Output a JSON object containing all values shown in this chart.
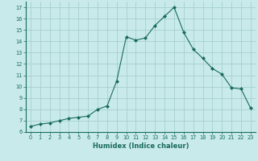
{
  "x": [
    0,
    1,
    2,
    3,
    4,
    5,
    6,
    7,
    8,
    9,
    10,
    11,
    12,
    13,
    14,
    15,
    16,
    17,
    18,
    19,
    20,
    21,
    22,
    23
  ],
  "y": [
    6.5,
    6.7,
    6.8,
    7.0,
    7.2,
    7.3,
    7.4,
    8.0,
    8.3,
    10.5,
    14.4,
    14.1,
    14.3,
    15.4,
    16.2,
    17.0,
    14.8,
    13.3,
    12.5,
    11.6,
    11.1,
    9.9,
    9.8,
    8.1
  ],
  "xlabel": "Humidex (Indice chaleur)",
  "ylim": [
    6,
    17.5
  ],
  "xlim": [
    -0.5,
    23.5
  ],
  "yticks": [
    6,
    7,
    8,
    9,
    10,
    11,
    12,
    13,
    14,
    15,
    16,
    17
  ],
  "xticks": [
    0,
    1,
    2,
    3,
    4,
    5,
    6,
    7,
    8,
    9,
    10,
    11,
    12,
    13,
    14,
    15,
    16,
    17,
    18,
    19,
    20,
    21,
    22,
    23
  ],
  "line_color": "#1a6b5e",
  "marker": "D",
  "bg_color": "#c8eaea",
  "grid_color": "#a0caca"
}
